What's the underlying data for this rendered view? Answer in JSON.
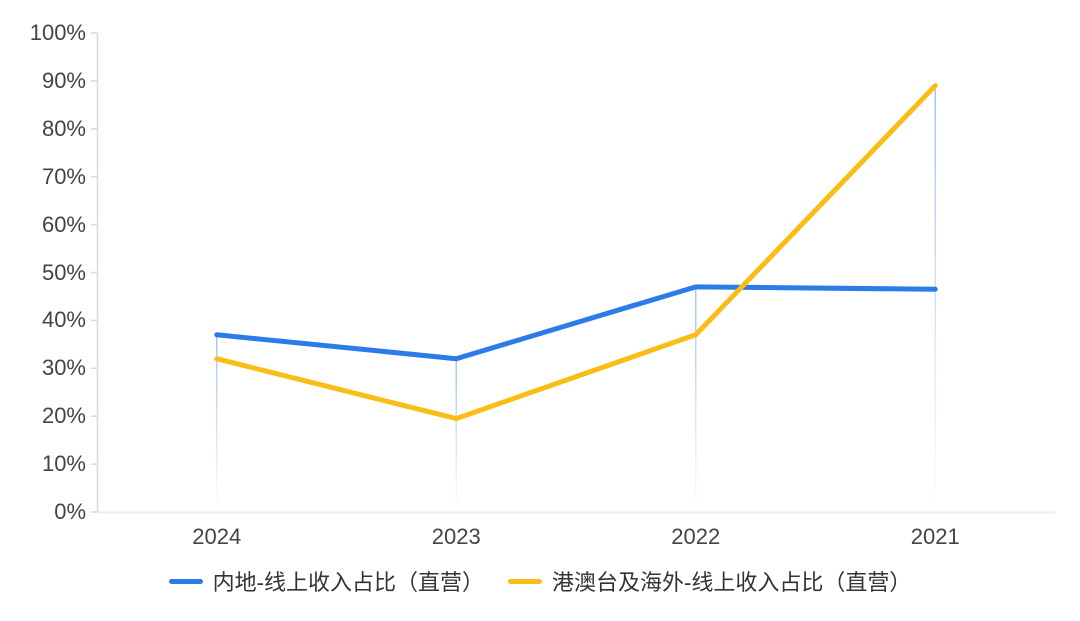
{
  "page": {
    "background": "#ffffff"
  },
  "chart_data": {
    "type": "line",
    "categories": [
      "2024",
      "2023",
      "2022",
      "2021"
    ],
    "series": [
      {
        "name": "内地-线上收入占比（直营）",
        "color": "#2B7BE8",
        "values": [
          37,
          32,
          47,
          46.5
        ]
      },
      {
        "name": "港澳台及海外-线上收入占比（直营）",
        "color": "#FABD16",
        "values": [
          32,
          19.5,
          37,
          89
        ]
      }
    ],
    "title": "",
    "xlabel": "",
    "ylabel": "",
    "ylim": [
      0,
      100
    ],
    "y_ticks": [
      {
        "value": 0,
        "label": "0%"
      },
      {
        "value": 10,
        "label": "10%"
      },
      {
        "value": 20,
        "label": "20%"
      },
      {
        "value": 30,
        "label": "30%"
      },
      {
        "value": 40,
        "label": "40%"
      },
      {
        "value": 50,
        "label": "50%"
      },
      {
        "value": 60,
        "label": "60%"
      },
      {
        "value": 70,
        "label": "70%"
      },
      {
        "value": 80,
        "label": "80%"
      },
      {
        "value": 90,
        "label": "90%"
      },
      {
        "value": 100,
        "label": "100%"
      }
    ],
    "grid": false,
    "legend_position": "bottom",
    "line_width": 5,
    "has_drop_lines": true
  },
  "style": {
    "y_axis_line_color": "#D9D9D9",
    "x_axis_line_color": "#EDEDED",
    "tick_color": "#D9D9D9",
    "axis_label_color": "#444444",
    "legend_text_color": "#333333",
    "drop_line_color": "#8FB8E8"
  }
}
